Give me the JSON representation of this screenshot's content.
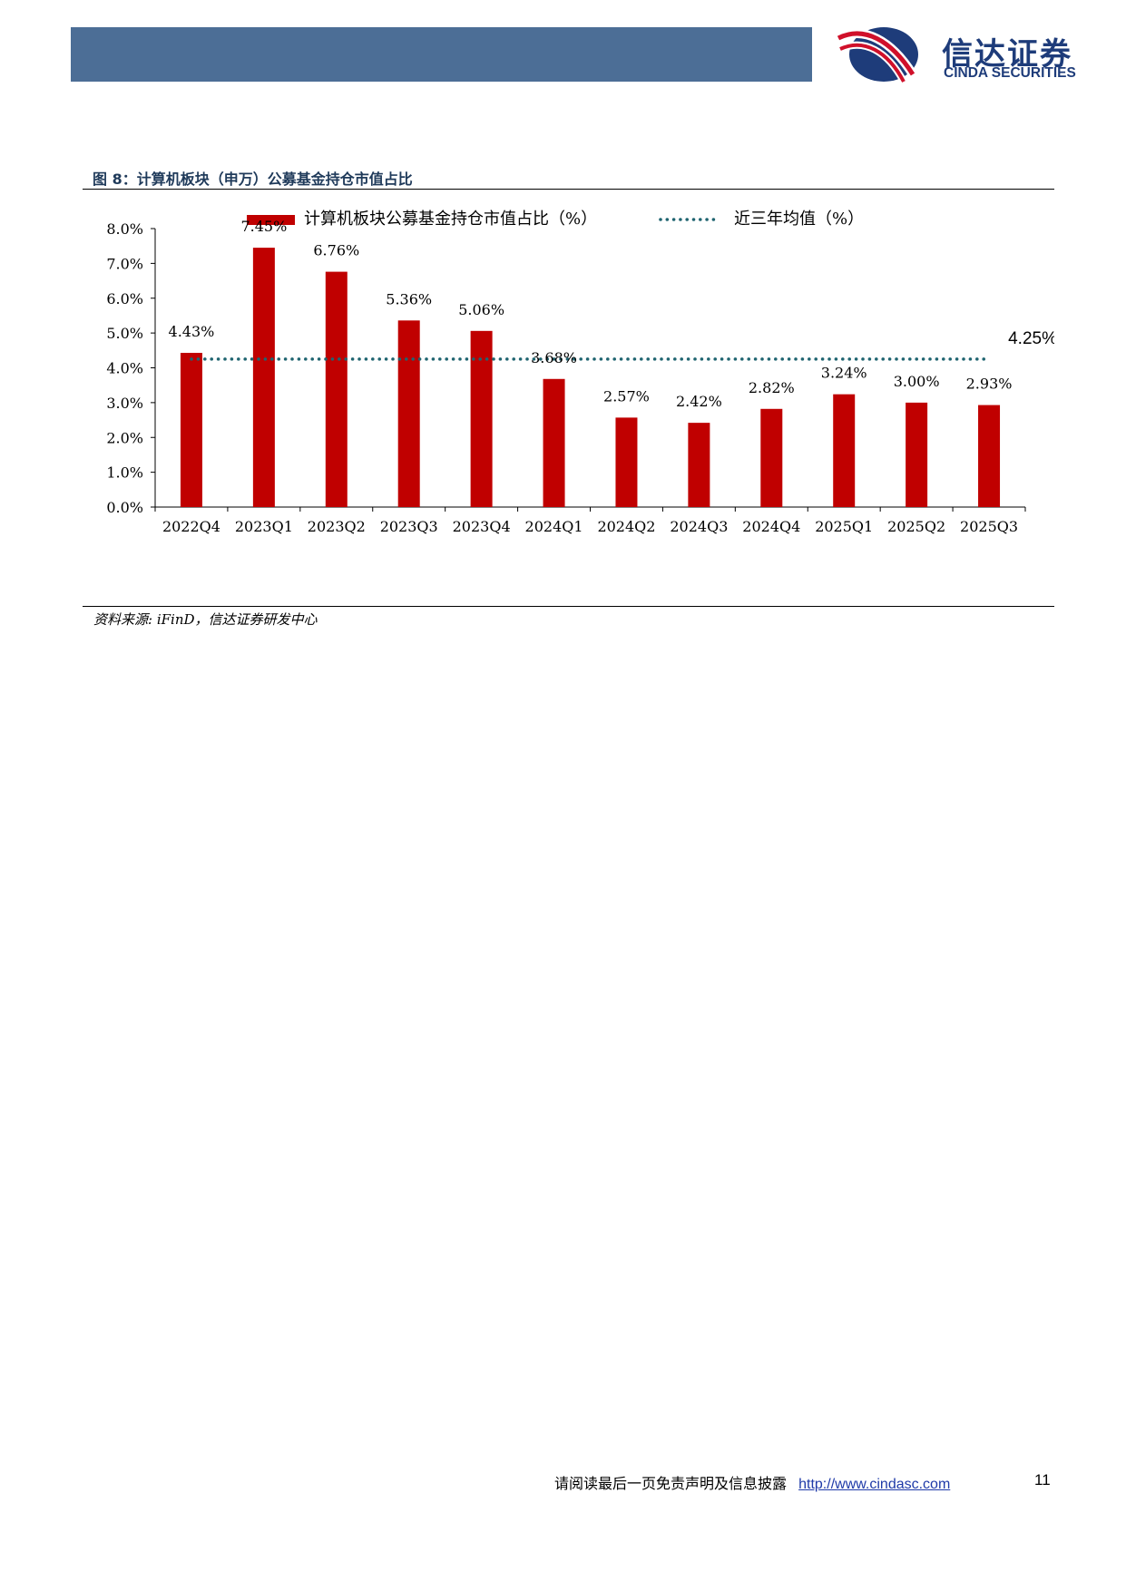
{
  "header": {
    "logo_cn": "信达证券",
    "logo_en": "CINDA SECURITIES",
    "colors": {
      "bar": "#4c6e96",
      "logo_navy": "#1e3c7a",
      "logo_red": "#d0102a"
    }
  },
  "figure": {
    "title": "图 8：计算机板块（申万）公募基金持仓市值占比",
    "source": "资料来源: iFinD，信达证券研发中心"
  },
  "chart_data": {
    "type": "bar",
    "categories": [
      "2022Q4",
      "2023Q1",
      "2023Q2",
      "2023Q3",
      "2023Q4",
      "2024Q1",
      "2024Q2",
      "2024Q3",
      "2024Q4",
      "2025Q1",
      "2025Q2",
      "2025Q3"
    ],
    "series": [
      {
        "name": "计算机板块公募基金持仓市值占比（%）",
        "type": "bar",
        "color": "#c00000",
        "values": [
          4.43,
          7.45,
          6.76,
          5.36,
          5.06,
          3.68,
          2.57,
          2.42,
          2.82,
          3.24,
          3.0,
          2.93
        ],
        "data_labels": [
          "4.43%",
          "7.45%",
          "6.76%",
          "5.36%",
          "5.06%",
          "3.68%",
          "2.57%",
          "2.42%",
          "2.82%",
          "3.24%",
          "3.00%",
          "2.93%"
        ]
      },
      {
        "name": "近三年均值（%）",
        "type": "line",
        "style": "dotted",
        "color": "#1f6470",
        "value": 4.25,
        "label": "4.25%"
      }
    ],
    "y_ticks": [
      "0.0%",
      "1.0%",
      "2.0%",
      "3.0%",
      "4.0%",
      "5.0%",
      "6.0%",
      "7.0%",
      "8.0%"
    ],
    "ylim": [
      0,
      8
    ],
    "grid": false,
    "legend_position": "top"
  },
  "footer": {
    "disclaimer": "请阅读最后一页免责声明及信息披露",
    "url": "http://www.cindasc.com",
    "page": "11"
  }
}
